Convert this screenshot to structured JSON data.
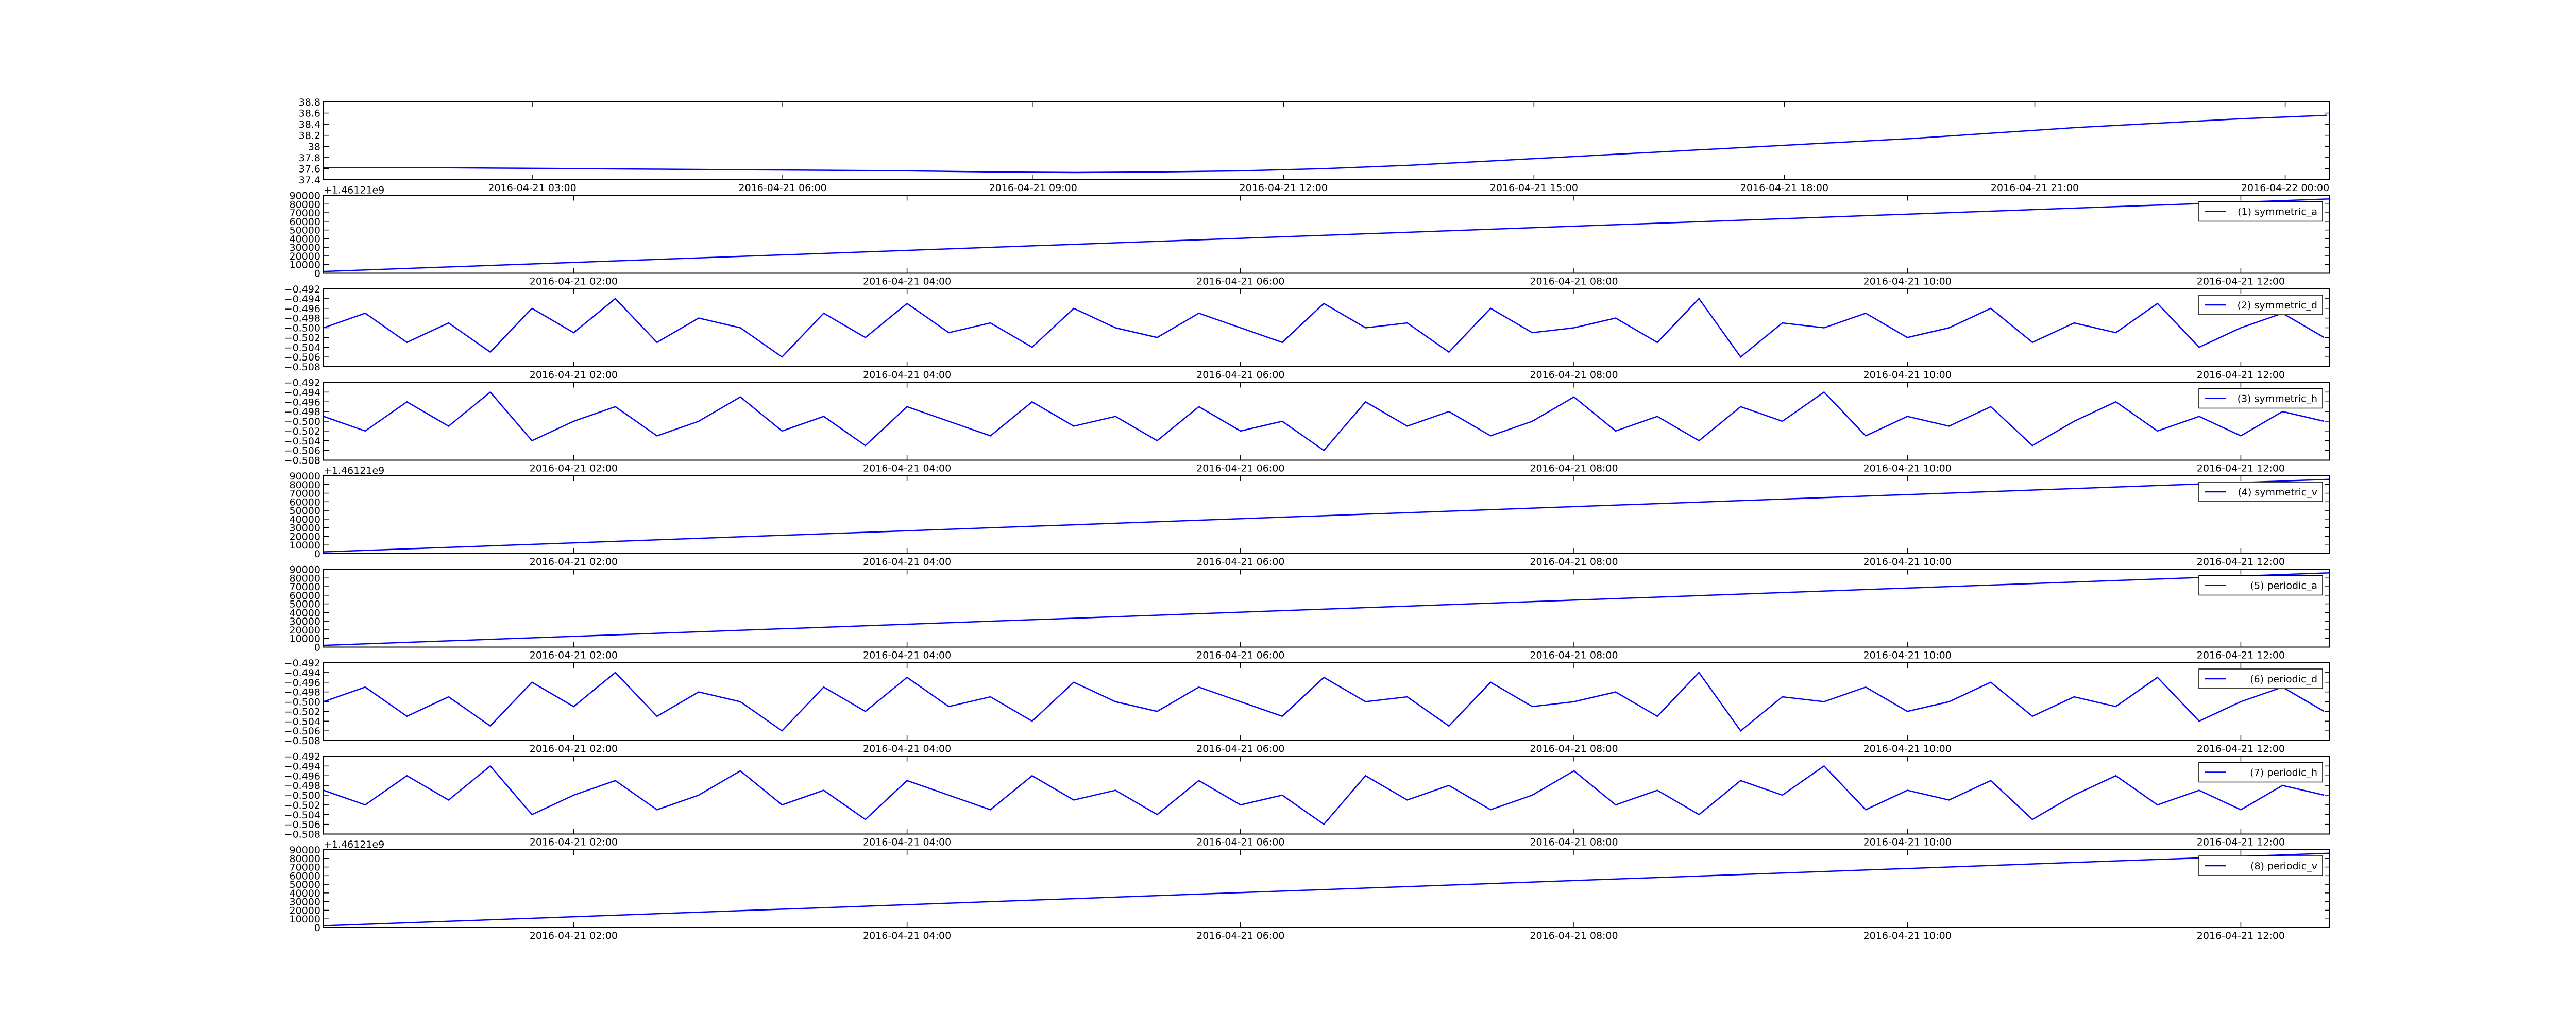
{
  "chart_data": [
    {
      "type": "line",
      "x": [
        "2016-04-21 00:30",
        "2016-04-21 01:30",
        "2016-04-21 02:30",
        "2016-04-21 03:30",
        "2016-04-21 04:30",
        "2016-04-21 05:30",
        "2016-04-21 06:30",
        "2016-04-21 07:30",
        "2016-04-21 08:30",
        "2016-04-21 09:30",
        "2016-04-21 10:30",
        "2016-04-21 11:30",
        "2016-04-21 12:30",
        "2016-04-21 13:30",
        "2016-04-21 14:30",
        "2016-04-21 15:30",
        "2016-04-21 16:30",
        "2016-04-21 17:30",
        "2016-04-21 18:30",
        "2016-04-21 19:30",
        "2016-04-21 20:30",
        "2016-04-21 21:30",
        "2016-04-21 22:30",
        "2016-04-21 23:30",
        "2016-04-22 00:30"
      ],
      "series": [
        {
          "color": "#0000ff",
          "values": [
            37.62,
            37.62,
            37.61,
            37.6,
            37.59,
            37.58,
            37.57,
            37.56,
            37.54,
            37.53,
            37.54,
            37.56,
            37.6,
            37.66,
            37.74,
            37.82,
            37.9,
            37.98,
            38.06,
            38.14,
            38.24,
            38.34,
            38.42,
            38.5,
            38.56
          ]
        }
      ],
      "xlim": [
        "2016-04-21 00:30",
        "2016-04-22 00:32"
      ],
      "xticks": [
        "2016-04-21 03:00",
        "2016-04-21 06:00",
        "2016-04-21 09:00",
        "2016-04-21 12:00",
        "2016-04-21 15:00",
        "2016-04-21 18:00",
        "2016-04-21 21:00",
        "2016-04-22 00:00"
      ],
      "ylim": [
        37.4,
        38.8
      ],
      "yticks": [
        37.4,
        37.6,
        37.8,
        38.0,
        38.2,
        38.4,
        38.6,
        38.8
      ]
    },
    {
      "type": "line",
      "x": [
        "2016-04-21 00:30",
        "2016-04-21 12:32"
      ],
      "series": [
        {
          "name": "(1) symmetric_a",
          "color": "#0000ff",
          "values": [
            2000,
            86000
          ]
        }
      ],
      "offset_label": "+1.46121e9",
      "legend": "upper right",
      "xlim": [
        "2016-04-21 00:30",
        "2016-04-21 12:32"
      ],
      "xticks": [
        "2016-04-21 02:00",
        "2016-04-21 04:00",
        "2016-04-21 06:00",
        "2016-04-21 08:00",
        "2016-04-21 10:00",
        "2016-04-21 12:00"
      ],
      "ylim": [
        0,
        90000
      ],
      "yticks": [
        0,
        10000,
        20000,
        30000,
        40000,
        50000,
        60000,
        70000,
        80000,
        90000
      ]
    },
    {
      "type": "line",
      "x": [
        "2016-04-21 00:30",
        "2016-04-21 00:45",
        "2016-04-21 01:00",
        "2016-04-21 01:15",
        "2016-04-21 01:30",
        "2016-04-21 01:45",
        "2016-04-21 02:00",
        "2016-04-21 02:15",
        "2016-04-21 02:30",
        "2016-04-21 02:45",
        "2016-04-21 03:00",
        "2016-04-21 03:15",
        "2016-04-21 03:30",
        "2016-04-21 03:45",
        "2016-04-21 04:00",
        "2016-04-21 04:15",
        "2016-04-21 04:30",
        "2016-04-21 04:45",
        "2016-04-21 05:00",
        "2016-04-21 05:15",
        "2016-04-21 05:30",
        "2016-04-21 05:45",
        "2016-04-21 06:00",
        "2016-04-21 06:15",
        "2016-04-21 06:30",
        "2016-04-21 06:45",
        "2016-04-21 07:00",
        "2016-04-21 07:15",
        "2016-04-21 07:30",
        "2016-04-21 07:45",
        "2016-04-21 08:00",
        "2016-04-21 08:15",
        "2016-04-21 08:30",
        "2016-04-21 08:45",
        "2016-04-21 09:00",
        "2016-04-21 09:15",
        "2016-04-21 09:30",
        "2016-04-21 09:45",
        "2016-04-21 10:00",
        "2016-04-21 10:15",
        "2016-04-21 10:30",
        "2016-04-21 10:45",
        "2016-04-21 11:00",
        "2016-04-21 11:15",
        "2016-04-21 11:30",
        "2016-04-21 11:45",
        "2016-04-21 12:00",
        "2016-04-21 12:15",
        "2016-04-21 12:30"
      ],
      "series": [
        {
          "name": "(2) symmetric_d",
          "color": "#0000ff",
          "values": [
            -0.5,
            -0.497,
            -0.503,
            -0.499,
            -0.505,
            -0.496,
            -0.501,
            -0.494,
            -0.503,
            -0.498,
            -0.5,
            -0.506,
            -0.497,
            -0.502,
            -0.495,
            -0.501,
            -0.499,
            -0.504,
            -0.496,
            -0.5,
            -0.502,
            -0.497,
            -0.5,
            -0.503,
            -0.495,
            -0.5,
            -0.499,
            -0.505,
            -0.496,
            -0.501,
            -0.5,
            -0.498,
            -0.503,
            -0.494,
            -0.506,
            -0.499,
            -0.5,
            -0.497,
            -0.502,
            -0.5,
            -0.496,
            -0.503,
            -0.499,
            -0.501,
            -0.495,
            -0.504,
            -0.5,
            -0.497,
            -0.502
          ]
        }
      ],
      "legend": "upper right",
      "xlim": [
        "2016-04-21 00:30",
        "2016-04-21 12:32"
      ],
      "xticks": [
        "2016-04-21 02:00",
        "2016-04-21 04:00",
        "2016-04-21 06:00",
        "2016-04-21 08:00",
        "2016-04-21 10:00",
        "2016-04-21 12:00"
      ],
      "ylim": [
        -0.508,
        -0.492
      ],
      "yticks": [
        {
          "value": -0.508,
          "label": "−0.508"
        },
        {
          "value": -0.506,
          "label": "−0.506"
        },
        {
          "value": -0.504,
          "label": "−0.504"
        },
        {
          "value": -0.502,
          "label": "−0.502"
        },
        {
          "value": -0.5,
          "label": "−0.500"
        },
        {
          "value": -0.498,
          "label": "−0.498"
        },
        {
          "value": -0.496,
          "label": "−0.496"
        },
        {
          "value": -0.494,
          "label": "−0.494"
        },
        {
          "value": -0.492,
          "label": "−0.492"
        }
      ]
    },
    {
      "type": "line",
      "x": [
        "2016-04-21 00:30",
        "2016-04-21 00:45",
        "2016-04-21 01:00",
        "2016-04-21 01:15",
        "2016-04-21 01:30",
        "2016-04-21 01:45",
        "2016-04-21 02:00",
        "2016-04-21 02:15",
        "2016-04-21 02:30",
        "2016-04-21 02:45",
        "2016-04-21 03:00",
        "2016-04-21 03:15",
        "2016-04-21 03:30",
        "2016-04-21 03:45",
        "2016-04-21 04:00",
        "2016-04-21 04:15",
        "2016-04-21 04:30",
        "2016-04-21 04:45",
        "2016-04-21 05:00",
        "2016-04-21 05:15",
        "2016-04-21 05:30",
        "2016-04-21 05:45",
        "2016-04-21 06:00",
        "2016-04-21 06:15",
        "2016-04-21 06:30",
        "2016-04-21 06:45",
        "2016-04-21 07:00",
        "2016-04-21 07:15",
        "2016-04-21 07:30",
        "2016-04-21 07:45",
        "2016-04-21 08:00",
        "2016-04-21 08:15",
        "2016-04-21 08:30",
        "2016-04-21 08:45",
        "2016-04-21 09:00",
        "2016-04-21 09:15",
        "2016-04-21 09:30",
        "2016-04-21 09:45",
        "2016-04-21 10:00",
        "2016-04-21 10:15",
        "2016-04-21 10:30",
        "2016-04-21 10:45",
        "2016-04-21 11:00",
        "2016-04-21 11:15",
        "2016-04-21 11:30",
        "2016-04-21 11:45",
        "2016-04-21 12:00",
        "2016-04-21 12:15",
        "2016-04-21 12:30"
      ],
      "series": [
        {
          "name": "(3) symmetric_h",
          "color": "#0000ff",
          "values": [
            -0.499,
            -0.502,
            -0.496,
            -0.501,
            -0.494,
            -0.504,
            -0.5,
            -0.497,
            -0.503,
            -0.5,
            -0.495,
            -0.502,
            -0.499,
            -0.505,
            -0.497,
            -0.5,
            -0.503,
            -0.496,
            -0.501,
            -0.499,
            -0.504,
            -0.497,
            -0.502,
            -0.5,
            -0.506,
            -0.496,
            -0.501,
            -0.498,
            -0.503,
            -0.5,
            -0.495,
            -0.502,
            -0.499,
            -0.504,
            -0.497,
            -0.5,
            -0.494,
            -0.503,
            -0.499,
            -0.501,
            -0.497,
            -0.505,
            -0.5,
            -0.496,
            -0.502,
            -0.499,
            -0.503,
            -0.498,
            -0.5
          ]
        }
      ],
      "legend": "upper right",
      "xlim": [
        "2016-04-21 00:30",
        "2016-04-21 12:32"
      ],
      "xticks": [
        "2016-04-21 02:00",
        "2016-04-21 04:00",
        "2016-04-21 06:00",
        "2016-04-21 08:00",
        "2016-04-21 10:00",
        "2016-04-21 12:00"
      ],
      "ylim": [
        -0.508,
        -0.492
      ],
      "yticks": [
        {
          "value": -0.508,
          "label": "−0.508"
        },
        {
          "value": -0.506,
          "label": "−0.506"
        },
        {
          "value": -0.504,
          "label": "−0.504"
        },
        {
          "value": -0.502,
          "label": "−0.502"
        },
        {
          "value": -0.5,
          "label": "−0.500"
        },
        {
          "value": -0.498,
          "label": "−0.498"
        },
        {
          "value": -0.496,
          "label": "−0.496"
        },
        {
          "value": -0.494,
          "label": "−0.494"
        },
        {
          "value": -0.492,
          "label": "−0.492"
        }
      ]
    },
    {
      "type": "line",
      "x": [
        "2016-04-21 00:30",
        "2016-04-21 12:32"
      ],
      "series": [
        {
          "name": "(4) symmetric_v",
          "color": "#0000ff",
          "values": [
            2000,
            86000
          ]
        }
      ],
      "offset_label": "+1.46121e9",
      "legend": "upper right",
      "xlim": [
        "2016-04-21 00:30",
        "2016-04-21 12:32"
      ],
      "xticks": [
        "2016-04-21 02:00",
        "2016-04-21 04:00",
        "2016-04-21 06:00",
        "2016-04-21 08:00",
        "2016-04-21 10:00",
        "2016-04-21 12:00"
      ],
      "ylim": [
        0,
        90000
      ],
      "yticks": [
        0,
        10000,
        20000,
        30000,
        40000,
        50000,
        60000,
        70000,
        80000,
        90000
      ]
    },
    {
      "type": "line",
      "x": [
        "2016-04-21 00:30",
        "2016-04-21 12:32"
      ],
      "series": [
        {
          "name": "(5) periodic_a",
          "color": "#0000ff",
          "values": [
            2000,
            86000
          ]
        }
      ],
      "legend": "upper right",
      "xlim": [
        "2016-04-21 00:30",
        "2016-04-21 12:32"
      ],
      "xticks": [
        "2016-04-21 02:00",
        "2016-04-21 04:00",
        "2016-04-21 06:00",
        "2016-04-21 08:00",
        "2016-04-21 10:00",
        "2016-04-21 12:00"
      ],
      "ylim": [
        0,
        90000
      ],
      "yticks": [
        0,
        10000,
        20000,
        30000,
        40000,
        50000,
        60000,
        70000,
        80000,
        90000
      ]
    },
    {
      "type": "line",
      "x": [
        "2016-04-21 00:30",
        "2016-04-21 00:45",
        "2016-04-21 01:00",
        "2016-04-21 01:15",
        "2016-04-21 01:30",
        "2016-04-21 01:45",
        "2016-04-21 02:00",
        "2016-04-21 02:15",
        "2016-04-21 02:30",
        "2016-04-21 02:45",
        "2016-04-21 03:00",
        "2016-04-21 03:15",
        "2016-04-21 03:30",
        "2016-04-21 03:45",
        "2016-04-21 04:00",
        "2016-04-21 04:15",
        "2016-04-21 04:30",
        "2016-04-21 04:45",
        "2016-04-21 05:00",
        "2016-04-21 05:15",
        "2016-04-21 05:30",
        "2016-04-21 05:45",
        "2016-04-21 06:00",
        "2016-04-21 06:15",
        "2016-04-21 06:30",
        "2016-04-21 06:45",
        "2016-04-21 07:00",
        "2016-04-21 07:15",
        "2016-04-21 07:30",
        "2016-04-21 07:45",
        "2016-04-21 08:00",
        "2016-04-21 08:15",
        "2016-04-21 08:30",
        "2016-04-21 08:45",
        "2016-04-21 09:00",
        "2016-04-21 09:15",
        "2016-04-21 09:30",
        "2016-04-21 09:45",
        "2016-04-21 10:00",
        "2016-04-21 10:15",
        "2016-04-21 10:30",
        "2016-04-21 10:45",
        "2016-04-21 11:00",
        "2016-04-21 11:15",
        "2016-04-21 11:30",
        "2016-04-21 11:45",
        "2016-04-21 12:00",
        "2016-04-21 12:15",
        "2016-04-21 12:30"
      ],
      "series": [
        {
          "name": "(6) periodic_d",
          "color": "#0000ff",
          "values": [
            -0.5,
            -0.497,
            -0.503,
            -0.499,
            -0.505,
            -0.496,
            -0.501,
            -0.494,
            -0.503,
            -0.498,
            -0.5,
            -0.506,
            -0.497,
            -0.502,
            -0.495,
            -0.501,
            -0.499,
            -0.504,
            -0.496,
            -0.5,
            -0.502,
            -0.497,
            -0.5,
            -0.503,
            -0.495,
            -0.5,
            -0.499,
            -0.505,
            -0.496,
            -0.501,
            -0.5,
            -0.498,
            -0.503,
            -0.494,
            -0.506,
            -0.499,
            -0.5,
            -0.497,
            -0.502,
            -0.5,
            -0.496,
            -0.503,
            -0.499,
            -0.501,
            -0.495,
            -0.504,
            -0.5,
            -0.497,
            -0.502
          ]
        }
      ],
      "legend": "upper right",
      "xlim": [
        "2016-04-21 00:30",
        "2016-04-21 12:32"
      ],
      "xticks": [
        "2016-04-21 02:00",
        "2016-04-21 04:00",
        "2016-04-21 06:00",
        "2016-04-21 08:00",
        "2016-04-21 10:00",
        "2016-04-21 12:00"
      ],
      "ylim": [
        -0.508,
        -0.492
      ],
      "yticks": [
        {
          "value": -0.508,
          "label": "−0.508"
        },
        {
          "value": -0.506,
          "label": "−0.506"
        },
        {
          "value": -0.504,
          "label": "−0.504"
        },
        {
          "value": -0.502,
          "label": "−0.502"
        },
        {
          "value": -0.5,
          "label": "−0.500"
        },
        {
          "value": -0.498,
          "label": "−0.498"
        },
        {
          "value": -0.496,
          "label": "−0.496"
        },
        {
          "value": -0.494,
          "label": "−0.494"
        },
        {
          "value": -0.492,
          "label": "−0.492"
        }
      ]
    },
    {
      "type": "line",
      "x": [
        "2016-04-21 00:30",
        "2016-04-21 00:45",
        "2016-04-21 01:00",
        "2016-04-21 01:15",
        "2016-04-21 01:30",
        "2016-04-21 01:45",
        "2016-04-21 02:00",
        "2016-04-21 02:15",
        "2016-04-21 02:30",
        "2016-04-21 02:45",
        "2016-04-21 03:00",
        "2016-04-21 03:15",
        "2016-04-21 03:30",
        "2016-04-21 03:45",
        "2016-04-21 04:00",
        "2016-04-21 04:15",
        "2016-04-21 04:30",
        "2016-04-21 04:45",
        "2016-04-21 05:00",
        "2016-04-21 05:15",
        "2016-04-21 05:30",
        "2016-04-21 05:45",
        "2016-04-21 06:00",
        "2016-04-21 06:15",
        "2016-04-21 06:30",
        "2016-04-21 06:45",
        "2016-04-21 07:00",
        "2016-04-21 07:15",
        "2016-04-21 07:30",
        "2016-04-21 07:45",
        "2016-04-21 08:00",
        "2016-04-21 08:15",
        "2016-04-21 08:30",
        "2016-04-21 08:45",
        "2016-04-21 09:00",
        "2016-04-21 09:15",
        "2016-04-21 09:30",
        "2016-04-21 09:45",
        "2016-04-21 10:00",
        "2016-04-21 10:15",
        "2016-04-21 10:30",
        "2016-04-21 10:45",
        "2016-04-21 11:00",
        "2016-04-21 11:15",
        "2016-04-21 11:30",
        "2016-04-21 11:45",
        "2016-04-21 12:00",
        "2016-04-21 12:15",
        "2016-04-21 12:30"
      ],
      "series": [
        {
          "name": "(7) periodic_h",
          "color": "#0000ff",
          "values": [
            -0.499,
            -0.502,
            -0.496,
            -0.501,
            -0.494,
            -0.504,
            -0.5,
            -0.497,
            -0.503,
            -0.5,
            -0.495,
            -0.502,
            -0.499,
            -0.505,
            -0.497,
            -0.5,
            -0.503,
            -0.496,
            -0.501,
            -0.499,
            -0.504,
            -0.497,
            -0.502,
            -0.5,
            -0.506,
            -0.496,
            -0.501,
            -0.498,
            -0.503,
            -0.5,
            -0.495,
            -0.502,
            -0.499,
            -0.504,
            -0.497,
            -0.5,
            -0.494,
            -0.503,
            -0.499,
            -0.501,
            -0.497,
            -0.505,
            -0.5,
            -0.496,
            -0.502,
            -0.499,
            -0.503,
            -0.498,
            -0.5
          ]
        }
      ],
      "legend": "upper right",
      "xlim": [
        "2016-04-21 00:30",
        "2016-04-21 12:32"
      ],
      "xticks": [
        "2016-04-21 02:00",
        "2016-04-21 04:00",
        "2016-04-21 06:00",
        "2016-04-21 08:00",
        "2016-04-21 10:00",
        "2016-04-21 12:00"
      ],
      "ylim": [
        -0.508,
        -0.492
      ],
      "yticks": [
        {
          "value": -0.508,
          "label": "−0.508"
        },
        {
          "value": -0.506,
          "label": "−0.506"
        },
        {
          "value": -0.504,
          "label": "−0.504"
        },
        {
          "value": -0.502,
          "label": "−0.502"
        },
        {
          "value": -0.5,
          "label": "−0.500"
        },
        {
          "value": -0.498,
          "label": "−0.498"
        },
        {
          "value": -0.496,
          "label": "−0.496"
        },
        {
          "value": -0.494,
          "label": "−0.494"
        },
        {
          "value": -0.492,
          "label": "−0.492"
        }
      ]
    },
    {
      "type": "line",
      "x": [
        "2016-04-21 00:30",
        "2016-04-21 12:32"
      ],
      "series": [
        {
          "name": "(8) periodic_v",
          "color": "#0000ff",
          "values": [
            2000,
            86000
          ]
        }
      ],
      "offset_label": "+1.46121e9",
      "legend": "upper right",
      "xlim": [
        "2016-04-21 00:30",
        "2016-04-21 12:32"
      ],
      "xticks": [
        "2016-04-21 02:00",
        "2016-04-21 04:00",
        "2016-04-21 06:00",
        "2016-04-21 08:00",
        "2016-04-21 10:00",
        "2016-04-21 12:00"
      ],
      "ylim": [
        0,
        90000
      ],
      "yticks": [
        0,
        10000,
        20000,
        30000,
        40000,
        50000,
        60000,
        70000,
        80000,
        90000
      ]
    }
  ]
}
